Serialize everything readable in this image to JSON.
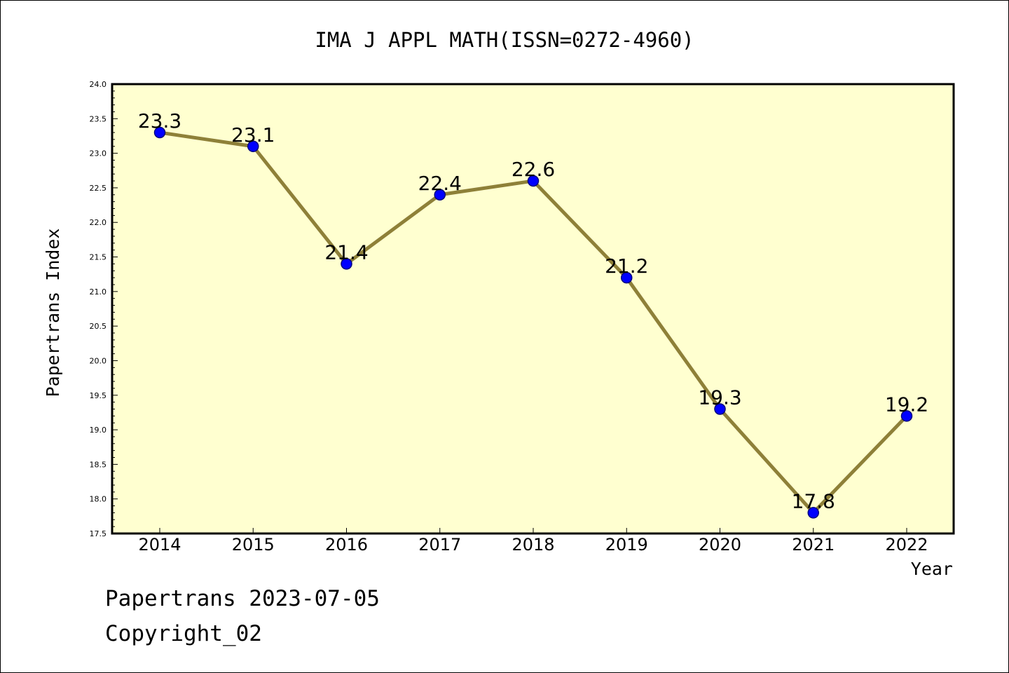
{
  "chart_data": {
    "type": "line",
    "title": "IMA J APPL MATH(ISSN=0272-4960)",
    "xlabel": "Year",
    "ylabel": "Papertrans Index",
    "categories": [
      "2014",
      "2015",
      "2016",
      "2017",
      "2018",
      "2019",
      "2020",
      "2021",
      "2022"
    ],
    "series": [
      {
        "name": "Papertrans Index",
        "values": [
          23.3,
          23.1,
          21.4,
          22.4,
          22.6,
          21.2,
          19.3,
          17.8,
          19.2
        ],
        "labels": [
          "23.3",
          "23.1",
          "21.4",
          "22.4",
          "22.6",
          "21.2",
          "19.3",
          "17.8",
          "19.2"
        ]
      }
    ],
    "ylim": [
      17.5,
      24.0
    ],
    "y_major_step": 0.5,
    "y_minor_step": 0.1,
    "y_tick_labels": [
      "17.5",
      "18.0",
      "18.5",
      "19.0",
      "19.5",
      "20.0",
      "20.5",
      "21.0",
      "21.5",
      "22.0",
      "22.5",
      "23.0",
      "23.5",
      "24.0"
    ],
    "grid": false,
    "colors": {
      "plot_background": "#ffffd0",
      "line": "#8e8038",
      "marker_fill": "#0000ff",
      "marker_edge": "#000080",
      "frame": "#000000",
      "text": "#000000"
    }
  },
  "footer": {
    "source_line": "Papertrans 2023-07-05",
    "copyright_line": "Copyright_02"
  }
}
